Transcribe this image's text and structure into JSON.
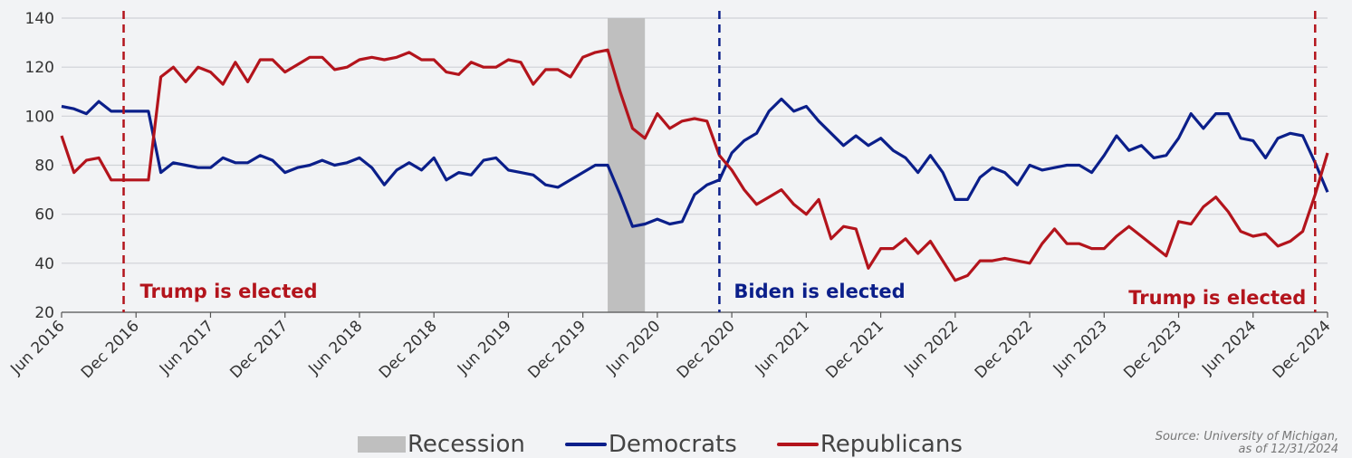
{
  "chart_data": {
    "type": "line",
    "ylim": [
      20,
      140
    ],
    "yticks": [
      20,
      40,
      60,
      80,
      100,
      120,
      140
    ],
    "x_start": "2016-06",
    "x_end": "2024-12",
    "xtick_labels": [
      "Jun 2016",
      "Dec 2016",
      "Jun 2017",
      "Dec 2017",
      "Jun 2018",
      "Dec 2018",
      "Jun 2019",
      "Dec 2019",
      "Jun 2020",
      "Dec 2020",
      "Jun 2021",
      "Dec 2021",
      "Jun 2022",
      "Dec 2022",
      "Jun 2023",
      "Dec 2023",
      "Jun 2024",
      "Dec 2024"
    ],
    "recession": {
      "label": "Recession",
      "start": "2020-02",
      "end": "2020-05",
      "color": "#bfbfbf"
    },
    "series": [
      {
        "name": "Democrats",
        "color": "#0b1f8a",
        "values": [
          104,
          103,
          101,
          106,
          102,
          102,
          102,
          102,
          77,
          81,
          80,
          79,
          79,
          83,
          81,
          81,
          84,
          82,
          77,
          79,
          80,
          82,
          80,
          81,
          83,
          79,
          72,
          78,
          81,
          78,
          83,
          74,
          77,
          76,
          82,
          83,
          78,
          77,
          76,
          72,
          71,
          74,
          77,
          80,
          80,
          68,
          55,
          56,
          58,
          56,
          57,
          68,
          72,
          74,
          85,
          90,
          93,
          102,
          107,
          102,
          104,
          98,
          93,
          88,
          92,
          88,
          91,
          86,
          83,
          77,
          84,
          77,
          66,
          66,
          75,
          79,
          77,
          72,
          80,
          78,
          79,
          80,
          80,
          77,
          84,
          92,
          86,
          88,
          83,
          84,
          91,
          101,
          95,
          101,
          101,
          91,
          90,
          83,
          91,
          93,
          92,
          81,
          69
        ]
      },
      {
        "name": "Republicans",
        "color": "#b3141c",
        "values": [
          92,
          77,
          82,
          83,
          74,
          74,
          74,
          74,
          116,
          120,
          114,
          120,
          118,
          113,
          122,
          114,
          123,
          123,
          118,
          121,
          124,
          124,
          119,
          120,
          123,
          124,
          123,
          124,
          126,
          123,
          123,
          118,
          117,
          122,
          120,
          120,
          123,
          122,
          113,
          119,
          119,
          116,
          124,
          126,
          127,
          110,
          95,
          91,
          101,
          95,
          98,
          99,
          98,
          84,
          78,
          70,
          64,
          67,
          70,
          64,
          60,
          66,
          50,
          55,
          54,
          38,
          46,
          46,
          50,
          44,
          49,
          41,
          33,
          35,
          41,
          41,
          42,
          41,
          40,
          48,
          54,
          48,
          48,
          46,
          46,
          51,
          55,
          51,
          47,
          43,
          57,
          56,
          63,
          67,
          61,
          53,
          51,
          52,
          47,
          49,
          53,
          68,
          85
        ]
      }
    ],
    "annotations": [
      {
        "label": "Trump is elected",
        "date": "2016-11",
        "color": "#b3141c"
      },
      {
        "label": "Biden is elected",
        "date": "2020-11",
        "color": "#0b1f8a"
      },
      {
        "label": "Trump is elected",
        "date": "2024-11",
        "color": "#b3141c"
      }
    ],
    "legend": [
      "Recession",
      "Democrats",
      "Republicans"
    ],
    "grid": true,
    "legend_position": "bottom"
  },
  "source": {
    "line1": "Source: University of Michigan,",
    "line2": "as of 12/31/2024"
  }
}
